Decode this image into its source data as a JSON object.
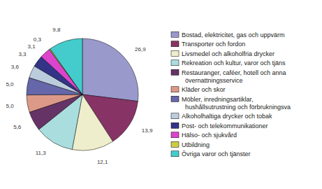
{
  "chart_data": {
    "type": "pie",
    "categories": [
      "Bostad, elektricitet, gas och uppvärm",
      "Transporter och fordon",
      "Livsmedel och alkoholfria drycker",
      "Rekreation och kultur, varor och tjäns",
      "Restauranger, caféer, hotell och anna\n  övernattningsservice",
      "Kläder och skor",
      "Möbler, inredningsartiklar,\n  hushållsutrustning och förbrukningsva",
      "Alkoholhaltiga drycker och tobak",
      "Post- och telekommunikationer",
      "Hälso- och sjukvård",
      "Utbildning",
      "Övriga varor och tjänster"
    ],
    "values": [
      26.9,
      13.9,
      12.1,
      11.3,
      5.6,
      5.0,
      5.0,
      3.6,
      3.3,
      3.1,
      0.3,
      9.8
    ],
    "value_labels": [
      "26,9",
      "13,9",
      "12,1",
      "11,3",
      "5,6",
      "5,0",
      "5,0",
      "3,6",
      "3,3",
      "3,1",
      "0,3",
      "9,8"
    ],
    "colors": [
      "#9999cc",
      "#883366",
      "#eeeecc",
      "#aadddd",
      "#663366",
      "#dd9988",
      "#6666aa",
      "#bbccdd",
      "#333388",
      "#dd44cc",
      "#cccc44",
      "#44cccc"
    ],
    "data_labels": true,
    "legend": "right"
  }
}
